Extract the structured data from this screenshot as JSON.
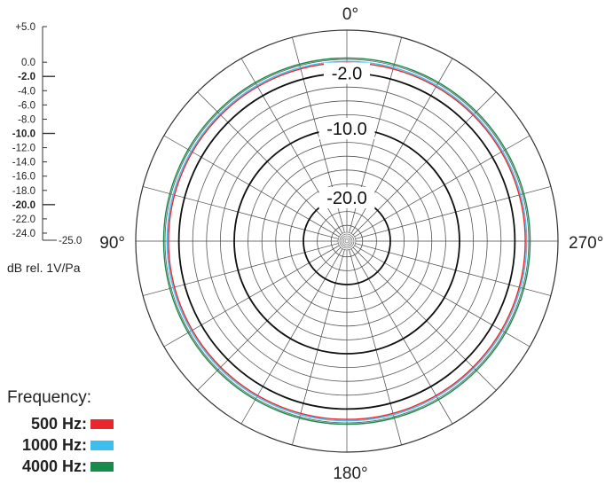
{
  "chart_data": {
    "type": "polar",
    "unit_label": "dB rel. 1V/Pa",
    "scale": {
      "ticks": [
        "+5.0",
        "0.0",
        "-2.0",
        "-4.0",
        "-6.0",
        "-8.0",
        "-10.0",
        "-12.0",
        "-14.0",
        "-16.0",
        "-18.0",
        "-20.0",
        "-22.0",
        "-24.0",
        "-25.0"
      ],
      "tick_values": [
        5,
        0,
        -2,
        -4,
        -6,
        -8,
        -10,
        -12,
        -14,
        -16,
        -18,
        -20,
        -22,
        -24,
        -25
      ],
      "bold_ticks": [
        -2,
        -10,
        -20
      ],
      "range": [
        -25,
        5
      ]
    },
    "ring_labels": [
      "-2.0",
      "-10.0",
      "-20.0"
    ],
    "ring_label_values": [
      -2,
      -10,
      -20
    ],
    "angle_labels": {
      "top": "0°",
      "left": "90°",
      "right": "270°",
      "bottom": "180°"
    },
    "grid": true,
    "legend_title": "Frequency:",
    "series": [
      {
        "name": "500 Hz:",
        "color": "#e8262c",
        "values_db": [
          -0.5
        ]
      },
      {
        "name": "1000 Hz:",
        "color": "#3cbfee",
        "values_db": [
          -0.3
        ]
      },
      {
        "name": "4000 Hz:",
        "color": "#178a4c",
        "values_db": [
          0.2
        ]
      }
    ]
  }
}
